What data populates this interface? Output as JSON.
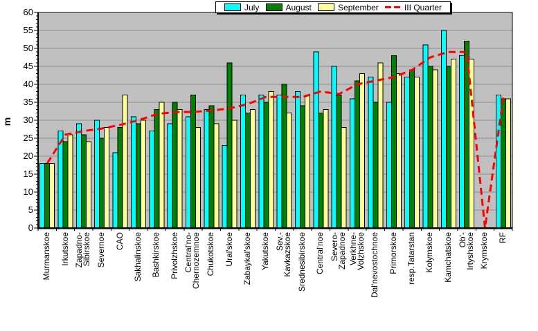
{
  "y_axis": {
    "title": "m"
  },
  "chart_data": {
    "type": "bar",
    "title": "",
    "xlabel": "",
    "ylabel": "m",
    "ylim": [
      0,
      60
    ],
    "ytick_step": 5,
    "grid": true,
    "legend_position": "top-center",
    "plot_bg_color": "#C0C0C0",
    "grid_color": "#8C8C8C",
    "categories": [
      [
        "Murmanskoe"
      ],
      [
        "Irkutskoe"
      ],
      [
        "Zapadno-",
        "Sibirskoe"
      ],
      [
        "Severnoe"
      ],
      [
        "CAO"
      ],
      [
        "Sakhalinskoe"
      ],
      [
        "Bashkirskoe"
      ],
      [
        "Privolzhskoe"
      ],
      [
        "Central'no-",
        "Chernozemnoe"
      ],
      [
        "Chukotskoe"
      ],
      [
        "Ural'skoe"
      ],
      [
        "Zabaykal'skoe"
      ],
      [
        "Yakutskoe"
      ],
      [
        "Sev.-",
        "Kavkazskoe"
      ],
      [
        "Srednesibirskoe"
      ],
      [
        "Central'noe"
      ],
      [
        "Severo-",
        "Zapadnoe"
      ],
      [
        "Verkhne-",
        "Volzhskoe"
      ],
      [
        "Dal'nevostochnoe"
      ],
      [
        "Primorskoe"
      ],
      [
        "resp.Tatarstan"
      ],
      [
        "Kolymskoe"
      ],
      [
        "Kamchatskoe"
      ],
      [
        "Ob'-",
        "Irtyshskoe"
      ],
      [
        "Krymskoe"
      ],
      [
        "RF"
      ]
    ],
    "series": [
      {
        "name": "July",
        "color": "#00FFFF",
        "values": [
          18,
          27,
          29,
          30,
          21,
          31,
          27,
          29,
          31,
          33,
          23,
          37,
          37,
          37,
          38,
          49,
          45,
          36,
          42,
          35,
          42,
          51,
          55,
          48,
          0,
          37
        ]
      },
      {
        "name": "August",
        "color": "#008000",
        "values": [
          18,
          24,
          26,
          25,
          28,
          29,
          33,
          35,
          37,
          34,
          46,
          32,
          35,
          40,
          34,
          32,
          37,
          41,
          35,
          48,
          44,
          45,
          45,
          52,
          0,
          36
        ]
      },
      {
        "name": "September",
        "color": "#FFFF99",
        "values": [
          18,
          26,
          24,
          28,
          37,
          30,
          35,
          33,
          28,
          29,
          30,
          33,
          38,
          32,
          37,
          33,
          28,
          43,
          46,
          43,
          42,
          44,
          47,
          47,
          0,
          36
        ]
      }
    ],
    "line_series": {
      "name": "III Quarter",
      "color": "#FF0000",
      "style": "dashed",
      "values": [
        18,
        26,
        27,
        27.7,
        28.7,
        30,
        31.7,
        32.3,
        32.3,
        32.7,
        33.3,
        34.5,
        36.5,
        36.5,
        36.5,
        38,
        37.3,
        40,
        41,
        42,
        44,
        47.5,
        49,
        49,
        0,
        36.3
      ]
    }
  }
}
